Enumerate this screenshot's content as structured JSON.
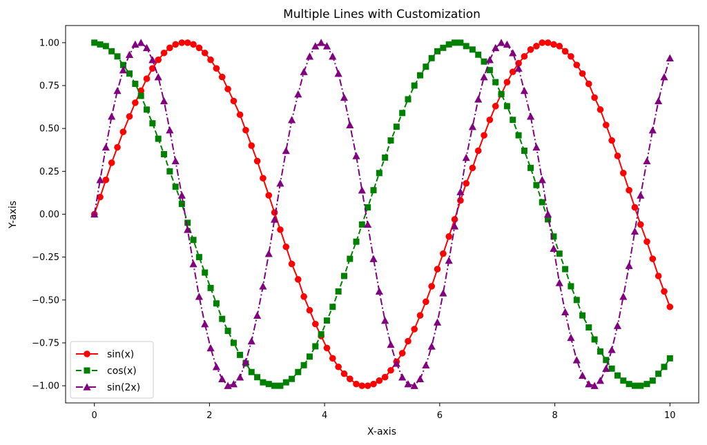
{
  "chart_data": {
    "type": "line",
    "title": "Multiple Lines with Customization",
    "xlabel": "X-axis",
    "ylabel": "Y-axis",
    "xlim": [
      -0.5,
      10.5
    ],
    "ylim": [
      -1.1,
      1.1
    ],
    "x_ticks": [
      0,
      2,
      4,
      6,
      8,
      10
    ],
    "x_tick_labels": [
      "0",
      "2",
      "4",
      "6",
      "8",
      "10"
    ],
    "y_ticks": [
      -1.0,
      -0.75,
      -0.5,
      -0.25,
      0.0,
      0.25,
      0.5,
      0.75,
      1.0
    ],
    "y_tick_labels": [
      "−1.00",
      "−0.75",
      "−0.50",
      "−0.25",
      "0.00",
      "0.25",
      "0.50",
      "0.75",
      "1.00"
    ],
    "grid": false,
    "legend_position": "lower-left",
    "x": [
      0.0,
      0.1,
      0.2,
      0.3,
      0.4,
      0.5,
      0.61,
      0.71,
      0.81,
      0.91,
      1.01,
      1.11,
      1.21,
      1.31,
      1.41,
      1.52,
      1.62,
      1.72,
      1.82,
      1.92,
      2.02,
      2.12,
      2.22,
      2.32,
      2.42,
      2.53,
      2.63,
      2.73,
      2.83,
      2.93,
      3.03,
      3.13,
      3.23,
      3.33,
      3.43,
      3.54,
      3.64,
      3.74,
      3.84,
      3.94,
      4.04,
      4.14,
      4.24,
      4.34,
      4.44,
      4.55,
      4.65,
      4.75,
      4.85,
      4.95,
      5.05,
      5.15,
      5.25,
      5.35,
      5.45,
      5.56,
      5.66,
      5.76,
      5.86,
      5.96,
      6.06,
      6.16,
      6.26,
      6.36,
      6.46,
      6.57,
      6.67,
      6.77,
      6.87,
      6.97,
      7.07,
      7.17,
      7.27,
      7.37,
      7.47,
      7.58,
      7.68,
      7.78,
      7.88,
      7.98,
      8.08,
      8.18,
      8.28,
      8.38,
      8.48,
      8.59,
      8.69,
      8.79,
      8.89,
      8.99,
      9.09,
      9.19,
      9.29,
      9.39,
      9.49,
      9.6,
      9.7,
      9.8,
      9.9,
      10.0
    ],
    "series": [
      {
        "name": "sin(x)",
        "color": "#ff0000",
        "marker": "circle",
        "linestyle": "solid",
        "values": [
          0.0,
          0.1,
          0.2,
          0.3,
          0.39,
          0.48,
          0.57,
          0.65,
          0.72,
          0.79,
          0.85,
          0.9,
          0.94,
          0.97,
          0.99,
          1.0,
          1.0,
          0.99,
          0.97,
          0.94,
          0.9,
          0.85,
          0.8,
          0.73,
          0.66,
          0.58,
          0.49,
          0.4,
          0.31,
          0.21,
          0.11,
          0.01,
          -0.09,
          -0.19,
          -0.29,
          -0.38,
          -0.48,
          -0.56,
          -0.64,
          -0.71,
          -0.78,
          -0.84,
          -0.89,
          -0.93,
          -0.96,
          -0.99,
          -1.0,
          -1.0,
          -0.99,
          -0.97,
          -0.95,
          -0.91,
          -0.86,
          -0.81,
          -0.74,
          -0.67,
          -0.59,
          -0.51,
          -0.42,
          -0.32,
          -0.23,
          -0.13,
          -0.03,
          0.08,
          0.18,
          0.27,
          0.37,
          0.46,
          0.55,
          0.63,
          0.7,
          0.77,
          0.83,
          0.88,
          0.92,
          0.96,
          0.98,
          1.0,
          1.0,
          0.99,
          0.98,
          0.95,
          0.92,
          0.87,
          0.82,
          0.76,
          0.68,
          0.61,
          0.52,
          0.43,
          0.34,
          0.24,
          0.14,
          0.04,
          -0.06,
          -0.16,
          -0.26,
          -0.36,
          -0.45,
          -0.54
        ]
      },
      {
        "name": "cos(x)",
        "color": "#008000",
        "marker": "square",
        "linestyle": "dashed",
        "values": [
          1.0,
          0.99,
          0.98,
          0.95,
          0.92,
          0.87,
          0.82,
          0.76,
          0.69,
          0.61,
          0.53,
          0.44,
          0.35,
          0.25,
          0.16,
          0.06,
          -0.05,
          -0.15,
          -0.25,
          -0.34,
          -0.43,
          -0.52,
          -0.61,
          -0.68,
          -0.75,
          -0.82,
          -0.87,
          -0.92,
          -0.95,
          -0.98,
          -0.99,
          -1.0,
          -1.0,
          -0.98,
          -0.96,
          -0.92,
          -0.88,
          -0.83,
          -0.77,
          -0.7,
          -0.62,
          -0.54,
          -0.45,
          -0.36,
          -0.26,
          -0.16,
          -0.06,
          0.04,
          0.14,
          0.24,
          0.33,
          0.43,
          0.51,
          0.59,
          0.67,
          0.75,
          0.81,
          0.86,
          0.91,
          0.95,
          0.97,
          0.99,
          1.0,
          1.0,
          0.98,
          0.96,
          0.93,
          0.89,
          0.84,
          0.77,
          0.7,
          0.63,
          0.55,
          0.46,
          0.37,
          0.27,
          0.17,
          0.07,
          -0.03,
          -0.13,
          -0.23,
          -0.32,
          -0.42,
          -0.5,
          -0.59,
          -0.66,
          -0.73,
          -0.8,
          -0.85,
          -0.9,
          -0.94,
          -0.97,
          -0.99,
          -1.0,
          -1.0,
          -0.99,
          -0.97,
          -0.93,
          -0.89,
          -0.84
        ]
      },
      {
        "name": "sin(2x)",
        "color": "#800080",
        "marker": "triangle",
        "linestyle": "dashdot",
        "values": [
          0.0,
          0.2,
          0.39,
          0.57,
          0.72,
          0.84,
          0.93,
          0.99,
          1.0,
          0.97,
          0.9,
          0.8,
          0.66,
          0.49,
          0.31,
          0.11,
          -0.09,
          -0.29,
          -0.48,
          -0.64,
          -0.78,
          -0.89,
          -0.96,
          -1.0,
          -0.99,
          -0.95,
          -0.86,
          -0.74,
          -0.59,
          -0.42,
          -0.23,
          -0.03,
          0.18,
          0.37,
          0.55,
          0.7,
          0.83,
          0.92,
          0.98,
          1.0,
          0.98,
          0.92,
          0.82,
          0.68,
          0.52,
          0.34,
          0.14,
          -0.06,
          -0.26,
          -0.45,
          -0.62,
          -0.76,
          -0.87,
          -0.95,
          -0.99,
          -1.0,
          -0.96,
          -0.88,
          -0.77,
          -0.63,
          -0.46,
          -0.27,
          -0.07,
          0.13,
          0.33,
          0.51,
          0.67,
          0.8,
          0.9,
          0.97,
          1.0,
          0.99,
          0.94,
          0.85,
          0.72,
          0.57,
          0.39,
          0.2,
          -0.0,
          -0.2,
          -0.4,
          -0.57,
          -0.72,
          -0.85,
          -0.94,
          -0.99,
          -1.0,
          -0.97,
          -0.9,
          -0.79,
          -0.65,
          -0.48,
          -0.3,
          -0.1,
          0.11,
          0.31,
          0.49,
          0.66,
          0.8,
          0.91
        ]
      }
    ]
  }
}
